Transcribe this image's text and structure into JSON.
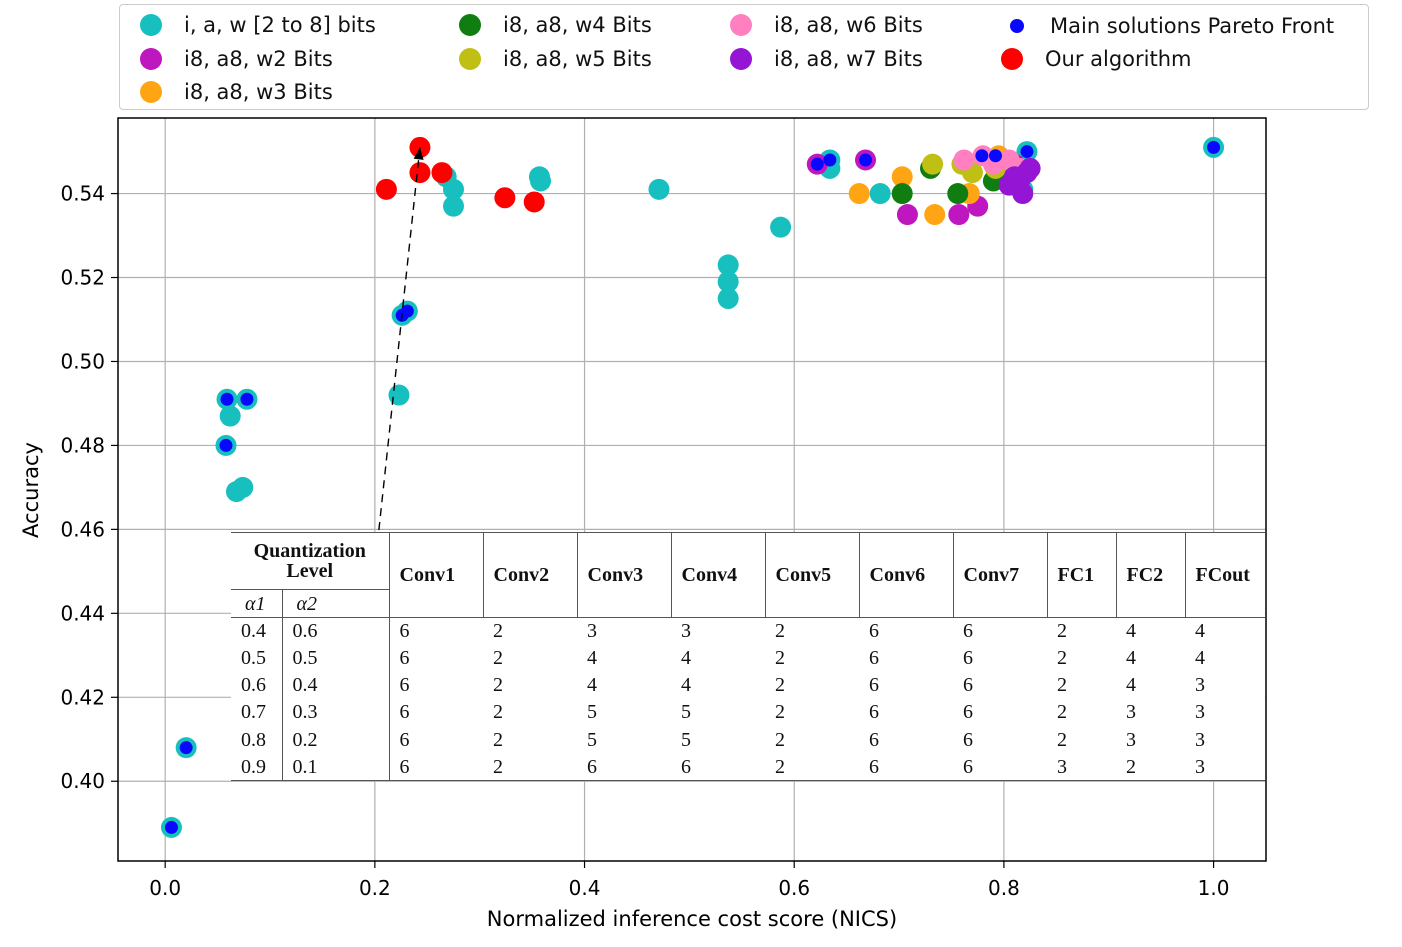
{
  "chart_data": {
    "type": "scatter",
    "xlabel": "Normalized inference cost score (NICS)",
    "ylabel": "Accuracy",
    "xlim": [
      -0.045,
      1.05
    ],
    "ylim": [
      0.381,
      0.558
    ],
    "xticks": [
      0.0,
      0.2,
      0.4,
      0.6,
      0.8,
      1.0
    ],
    "xtick_labels": [
      "0.0",
      "0.2",
      "0.4",
      "0.6",
      "0.8",
      "1.0"
    ],
    "yticks": [
      0.4,
      0.42,
      0.44,
      0.46,
      0.48,
      0.5,
      0.52,
      0.54
    ],
    "ytick_labels": [
      "0.40",
      "0.42",
      "0.44",
      "0.46",
      "0.48",
      "0.50",
      "0.52",
      "0.54"
    ],
    "grid": true,
    "legend_position": "top",
    "series": [
      {
        "name": "i, a, w [2 to 8] bits",
        "color": "#17bfbf",
        "size": "large",
        "points": [
          [
            0.006,
            0.389
          ],
          [
            0.02,
            0.408
          ],
          [
            0.059,
            0.491
          ],
          [
            0.078,
            0.491
          ],
          [
            0.062,
            0.487
          ],
          [
            0.058,
            0.48
          ],
          [
            0.068,
            0.469
          ],
          [
            0.074,
            0.47
          ],
          [
            0.223,
            0.492
          ],
          [
            0.226,
            0.511
          ],
          [
            0.231,
            0.512
          ],
          [
            0.268,
            0.544
          ],
          [
            0.275,
            0.541
          ],
          [
            0.275,
            0.537
          ],
          [
            0.357,
            0.544
          ],
          [
            0.358,
            0.543
          ],
          [
            0.471,
            0.541
          ],
          [
            0.537,
            0.523
          ],
          [
            0.537,
            0.519
          ],
          [
            0.537,
            0.515
          ],
          [
            0.587,
            0.532
          ],
          [
            0.634,
            0.548
          ],
          [
            0.634,
            0.546
          ],
          [
            0.682,
            0.54
          ],
          [
            0.818,
            0.541
          ],
          [
            0.822,
            0.55
          ],
          [
            1.0,
            0.551
          ]
        ]
      },
      {
        "name": "i8, a8, w2 Bits",
        "color": "#bf17bf",
        "size": "large",
        "points": [
          [
            0.622,
            0.547
          ],
          [
            0.668,
            0.548
          ],
          [
            0.708,
            0.535
          ],
          [
            0.757,
            0.535
          ],
          [
            0.775,
            0.537
          ],
          [
            0.81,
            0.547
          ]
        ]
      },
      {
        "name": "i8, a8, w3 Bits",
        "color": "#ffa514",
        "size": "large",
        "points": [
          [
            0.662,
            0.54
          ],
          [
            0.703,
            0.544
          ],
          [
            0.734,
            0.535
          ],
          [
            0.767,
            0.54
          ],
          [
            0.795,
            0.549
          ]
        ]
      },
      {
        "name": "i8, a8, w4 Bits",
        "color": "#107d10",
        "size": "large",
        "points": [
          [
            0.703,
            0.54
          ],
          [
            0.73,
            0.546
          ],
          [
            0.756,
            0.54
          ],
          [
            0.79,
            0.543
          ],
          [
            0.802,
            0.546
          ]
        ]
      },
      {
        "name": "i8, a8, w5 Bits",
        "color": "#bfbf14",
        "size": "large",
        "points": [
          [
            0.732,
            0.547
          ],
          [
            0.76,
            0.547
          ],
          [
            0.77,
            0.545
          ],
          [
            0.792,
            0.546
          ],
          [
            0.812,
            0.544
          ]
        ]
      },
      {
        "name": "i8, a8, w6 Bits",
        "color": "#ff7fc0",
        "size": "large",
        "points": [
          [
            0.762,
            0.548
          ],
          [
            0.78,
            0.549
          ],
          [
            0.79,
            0.547
          ],
          [
            0.805,
            0.548
          ],
          [
            0.815,
            0.546
          ]
        ]
      },
      {
        "name": "i8, a8, w7 Bits",
        "color": "#9416d4",
        "size": "large",
        "points": [
          [
            0.805,
            0.542
          ],
          [
            0.81,
            0.544
          ],
          [
            0.815,
            0.543
          ],
          [
            0.818,
            0.54
          ],
          [
            0.822,
            0.545
          ],
          [
            0.825,
            0.546
          ]
        ]
      },
      {
        "name": "Main solutions Pareto Front",
        "color": "#0808ff",
        "size": "small",
        "points": [
          [
            0.006,
            0.389
          ],
          [
            0.02,
            0.408
          ],
          [
            0.058,
            0.48
          ],
          [
            0.059,
            0.491
          ],
          [
            0.078,
            0.491
          ],
          [
            0.226,
            0.511
          ],
          [
            0.231,
            0.512
          ],
          [
            0.622,
            0.547
          ],
          [
            0.634,
            0.548
          ],
          [
            0.668,
            0.548
          ],
          [
            0.779,
            0.549
          ],
          [
            0.792,
            0.549
          ],
          [
            0.822,
            0.55
          ],
          [
            1.0,
            0.551
          ]
        ]
      },
      {
        "name": "Our algorithm",
        "color": "#ff0000",
        "size": "large",
        "points": [
          [
            0.211,
            0.541
          ],
          [
            0.243,
            0.551
          ],
          [
            0.243,
            0.545
          ],
          [
            0.264,
            0.545
          ],
          [
            0.324,
            0.539
          ],
          [
            0.352,
            0.538
          ]
        ]
      }
    ],
    "annotation": {
      "from": [
        0.191,
        0.43
      ],
      "to": [
        0.243,
        0.551
      ],
      "style": "dashed-arrow"
    }
  },
  "legend": {
    "items": [
      {
        "label": "i, a, w [2 to 8] bits",
        "color": "#17bfbf"
      },
      {
        "label": "i8, a8, w2 Bits",
        "color": "#bf17bf"
      },
      {
        "label": "i8, a8, w3 Bits",
        "color": "#ffa514"
      },
      {
        "label": "i8, a8, w4 Bits",
        "color": "#107d10"
      },
      {
        "label": "i8, a8, w5 Bits",
        "color": "#bfbf14"
      },
      {
        "label": "i8, a8, w6 Bits",
        "color": "#ff7fc0"
      },
      {
        "label": "i8, a8, w7 Bits",
        "color": "#9416d4"
      },
      {
        "label": "Main solutions Pareto Front",
        "color": "#0808ff"
      },
      {
        "label": "Our algorithm",
        "color": "#ff0000"
      }
    ]
  },
  "table": {
    "group_header": "Quantization Level",
    "alpha1": "α1",
    "alpha2": "α2",
    "columns": [
      "Conv1",
      "Conv2",
      "Conv3",
      "Conv4",
      "Conv5",
      "Conv6",
      "Conv7",
      "FC1",
      "FC2",
      "FCout"
    ],
    "rows": [
      [
        "0.4",
        "0.6",
        "6",
        "2",
        "3",
        "3",
        "2",
        "6",
        "6",
        "2",
        "4",
        "4"
      ],
      [
        "0.5",
        "0.5",
        "6",
        "2",
        "4",
        "4",
        "2",
        "6",
        "6",
        "2",
        "4",
        "4"
      ],
      [
        "0.6",
        "0.4",
        "6",
        "2",
        "4",
        "4",
        "2",
        "6",
        "6",
        "2",
        "4",
        "3"
      ],
      [
        "0.7",
        "0.3",
        "6",
        "2",
        "5",
        "5",
        "2",
        "6",
        "6",
        "2",
        "3",
        "3"
      ],
      [
        "0.8",
        "0.2",
        "6",
        "2",
        "5",
        "5",
        "2",
        "6",
        "6",
        "2",
        "3",
        "3"
      ],
      [
        "0.9",
        "0.1",
        "6",
        "2",
        "6",
        "6",
        "2",
        "6",
        "6",
        "3",
        "2",
        "3"
      ]
    ]
  }
}
